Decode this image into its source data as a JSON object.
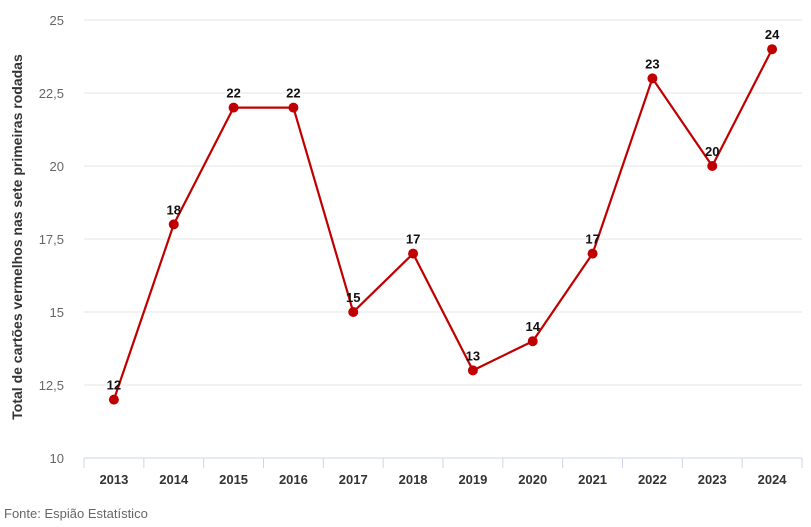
{
  "chart_data": {
    "type": "line",
    "categories": [
      "2013",
      "2014",
      "2015",
      "2016",
      "2017",
      "2018",
      "2019",
      "2020",
      "2021",
      "2022",
      "2023",
      "2024"
    ],
    "values": [
      12,
      18,
      22,
      22,
      15,
      17,
      13,
      14,
      17,
      23,
      20,
      24
    ],
    "ylabel": "Total de cartões vermelhos nas sete primeiras rodadas",
    "ylim": [
      10,
      25
    ],
    "yticks": [
      "10",
      "12,5",
      "15",
      "17,5",
      "20",
      "22,5",
      "25"
    ],
    "color": "#c00000",
    "grid": true
  },
  "source": "Fonte: Espião Estatístico"
}
